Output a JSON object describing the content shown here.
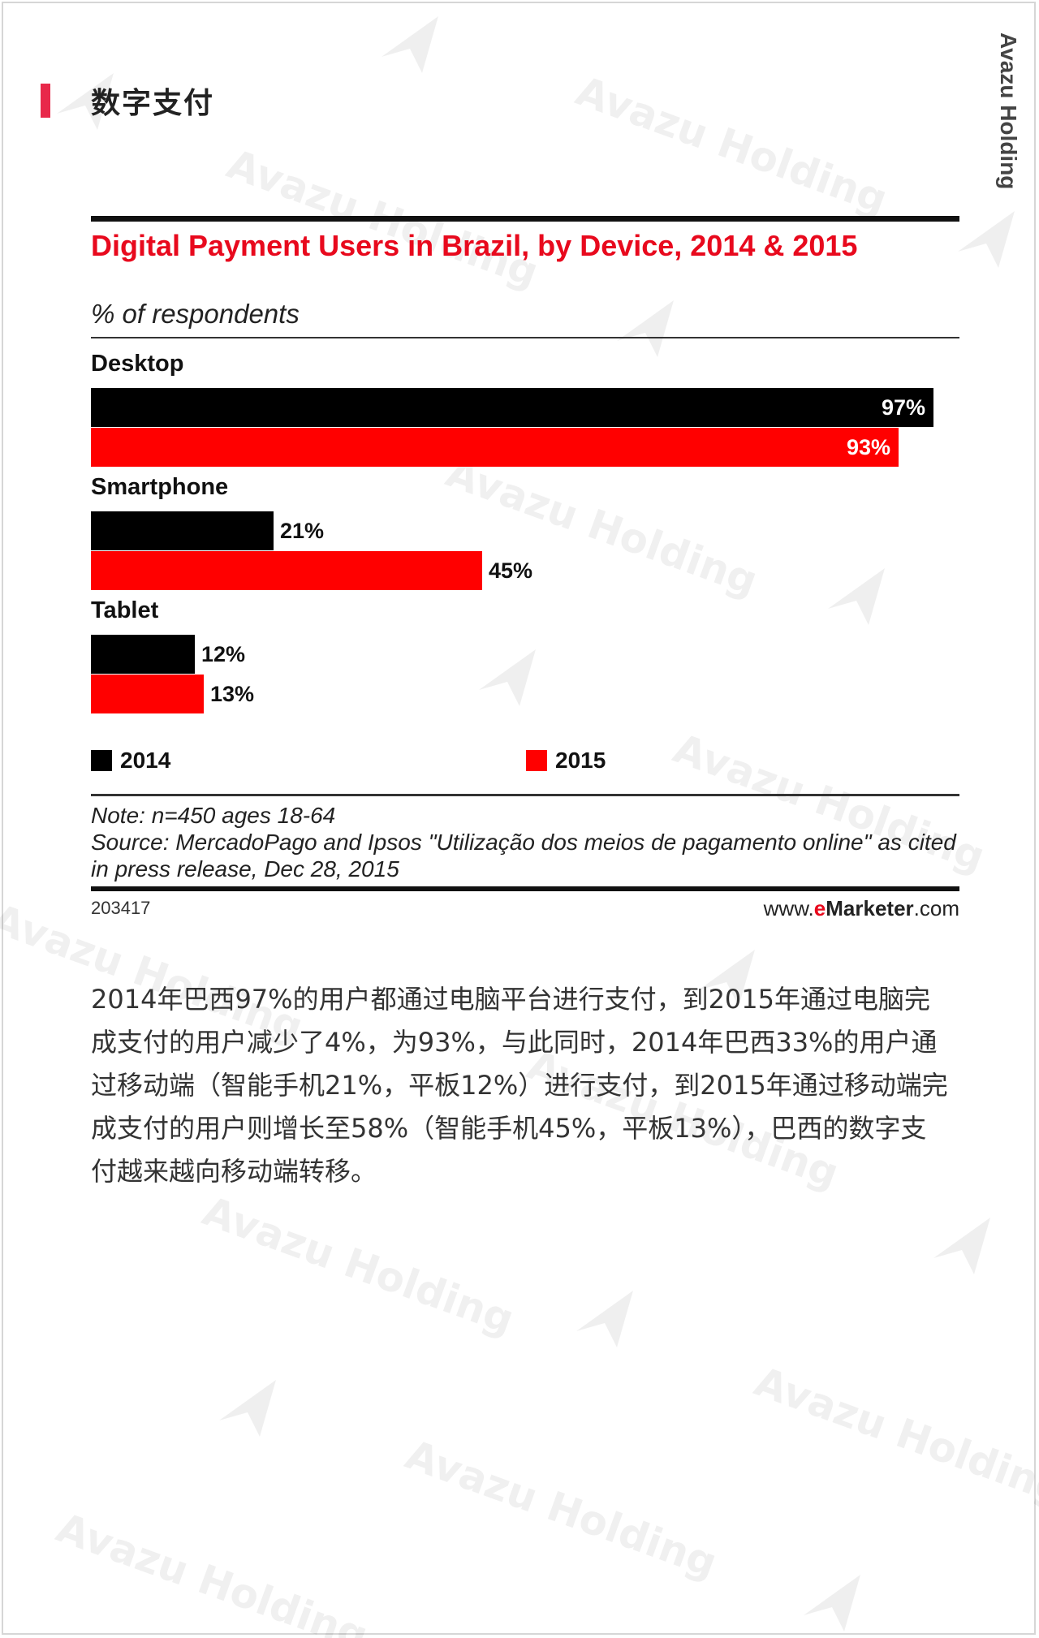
{
  "brand": "Avazu Holding",
  "section": {
    "title": "数字支付",
    "accent_color": "#e8284a"
  },
  "chart_data": {
    "type": "bar",
    "orientation": "horizontal",
    "title": "Digital Payment Users in Brazil, by Device, 2014 & 2015",
    "subtitle": "% of respondents",
    "categories": [
      "Desktop",
      "Smartphone",
      "Tablet"
    ],
    "series": [
      {
        "name": "2014",
        "color": "#000000",
        "values": [
          97,
          21,
          12
        ],
        "labels": [
          "97%",
          "21%",
          "12%"
        ]
      },
      {
        "name": "2015",
        "color": "#ff0000",
        "values": [
          93,
          45,
          13
        ],
        "labels": [
          "93%",
          "45%",
          "13%"
        ]
      }
    ],
    "xlim": [
      0,
      100
    ],
    "note": "Note: n=450 ages 18-64",
    "source": "Source: MercadoPago and Ipsos \"Utilização dos meios de pagamento online\" as cited in press release, Dec 28, 2015",
    "chart_id": "203417",
    "site": {
      "prefix": "www.",
      "e": "e",
      "marketer": "Marketer",
      "suffix": ".com"
    }
  },
  "paragraph": "2014年巴西97%的用户都通过电脑平台进行支付，到2015年通过电脑完成支付的用户减少了4%，为93%，与此同时，2014年巴西33%的用户通过移动端（智能手机21%，平板12%）进行支付，到2015年通过移动端完成支付的用户则增长至58%（智能手机45%，平板13%），巴西的数字支付越来越向移动端转移。"
}
